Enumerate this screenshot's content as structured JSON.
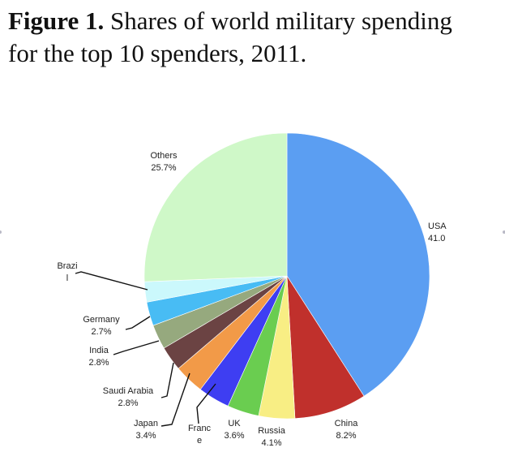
{
  "figure": {
    "label": "Figure 1.",
    "caption_line1": "Shares of world military spending",
    "caption_line2": "for the top 10 spenders, 2011."
  },
  "chart_data": {
    "type": "pie",
    "title": "Shares of world military spending for the top 10 spenders, 2011",
    "slices": [
      {
        "name": "USA",
        "value": 41.0,
        "label_lines": [
          "USA",
          "41.0"
        ],
        "color": "#5b9ef2"
      },
      {
        "name": "China",
        "value": 8.2,
        "label_lines": [
          "China",
          "8.2%"
        ],
        "color": "#c0302c"
      },
      {
        "name": "Russia",
        "value": 4.1,
        "label_lines": [
          "Russia",
          "4.1%"
        ],
        "color": "#f8ee84"
      },
      {
        "name": "UK",
        "value": 3.6,
        "label_lines": [
          "UK",
          "3.6%"
        ],
        "color": "#6acd50"
      },
      {
        "name": "France",
        "value": 3.6,
        "label_lines": [
          "Franc",
          "e"
        ],
        "color": "#3e3ef2"
      },
      {
        "name": "Japan",
        "value": 3.4,
        "label_lines": [
          "Japan",
          "3.4%"
        ],
        "color": "#f29a48"
      },
      {
        "name": "Saudi Arabia",
        "value": 2.8,
        "label_lines": [
          "Saudi Arabia",
          "2.8%"
        ],
        "color": "#6b4343"
      },
      {
        "name": "India",
        "value": 2.8,
        "label_lines": [
          "India",
          "2.8%"
        ],
        "color": "#96a97e"
      },
      {
        "name": "Germany",
        "value": 2.7,
        "label_lines": [
          "Germany",
          "2.7%"
        ],
        "color": "#48bcf4"
      },
      {
        "name": "Brazil",
        "value": 2.3,
        "label_lines": [
          "Brazi",
          "l"
        ],
        "color": "#cbf8fc"
      },
      {
        "name": "Others",
        "value": 25.7,
        "label_lines": [
          "Others",
          "25.7%"
        ],
        "color": "#cff8c8"
      }
    ],
    "start": "12 o'clock",
    "direction": "clockwise",
    "legend": "none"
  }
}
